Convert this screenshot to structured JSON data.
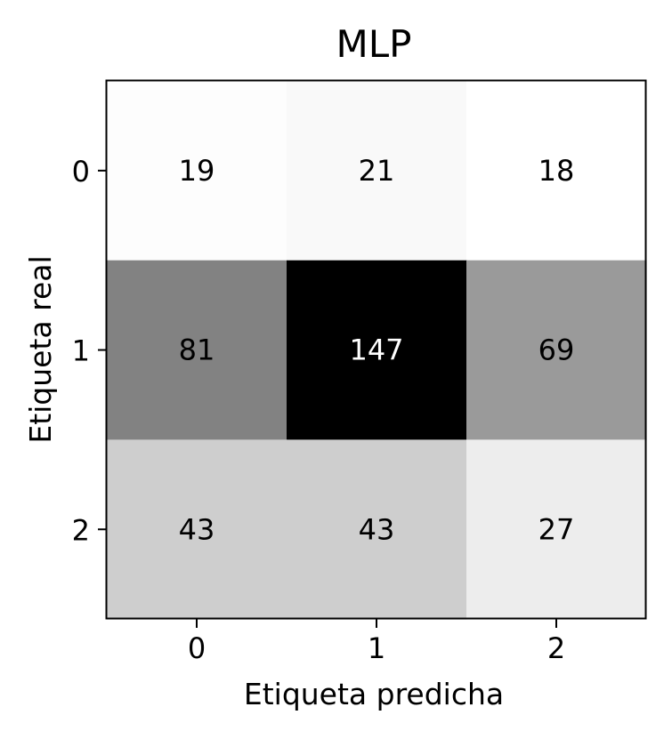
{
  "chart_data": {
    "type": "heatmap",
    "title": "MLP",
    "xlabel": "Etiqueta predicha",
    "ylabel": "Etiqueta real",
    "x_categories": [
      "0",
      "1",
      "2"
    ],
    "y_categories": [
      "0",
      "1",
      "2"
    ],
    "values": [
      [
        19,
        21,
        18
      ],
      [
        81,
        147,
        69
      ],
      [
        43,
        43,
        27
      ]
    ],
    "colormap": "greys",
    "grid": false,
    "colors": {
      "low": "#ffffff",
      "high": "#000000",
      "text_dark": "#000000",
      "text_light": "#ffffff"
    }
  }
}
